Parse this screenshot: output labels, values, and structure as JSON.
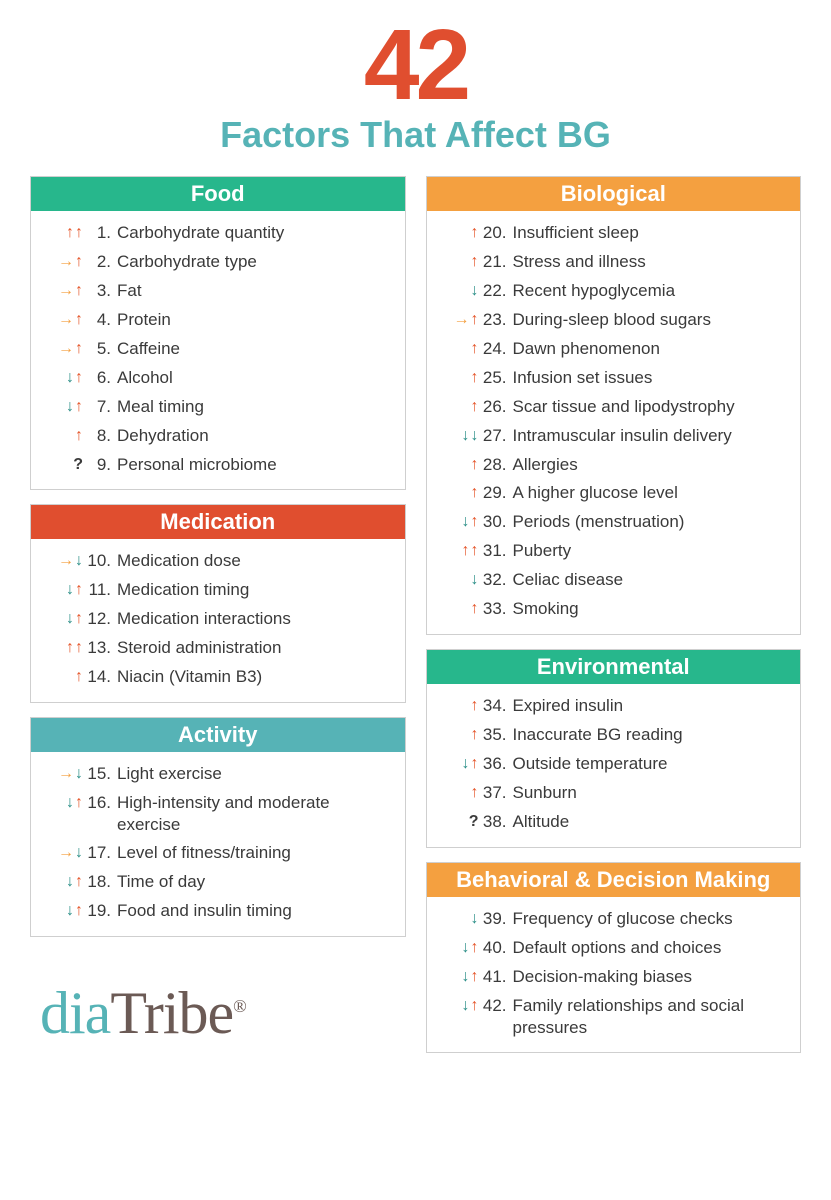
{
  "colors": {
    "orange_header": "#f4a040",
    "green_header": "#27b78c",
    "teal_header": "#56b3b6",
    "red_header": "#e04e2f",
    "big_number": "#e04e2f",
    "subtitle": "#56b3b6",
    "arrow_up": "#e5572c",
    "arrow_down": "#2a8e87",
    "arrow_right": "#f4a040",
    "question": "#3a3a3a",
    "text": "#3a3a3a"
  },
  "header": {
    "number": "42",
    "subtitle": "Factors That Affect BG"
  },
  "logo": {
    "part1": "dia",
    "part2": "Tribe",
    "reg": "®"
  },
  "left": [
    {
      "title": "Food",
      "header_color": "green_header",
      "items": [
        {
          "n": 1,
          "label": "Carbohydrate quantity",
          "arrows": [
            "up",
            "up"
          ]
        },
        {
          "n": 2,
          "label": "Carbohydrate type",
          "arrows": [
            "right",
            "up"
          ]
        },
        {
          "n": 3,
          "label": "Fat",
          "arrows": [
            "right",
            "up"
          ]
        },
        {
          "n": 4,
          "label": "Protein",
          "arrows": [
            "right",
            "up"
          ]
        },
        {
          "n": 5,
          "label": "Caffeine",
          "arrows": [
            "right",
            "up"
          ]
        },
        {
          "n": 6,
          "label": "Alcohol",
          "arrows": [
            "down",
            "up"
          ]
        },
        {
          "n": 7,
          "label": "Meal timing",
          "arrows": [
            "down",
            "up"
          ]
        },
        {
          "n": 8,
          "label": "Dehydration",
          "arrows": [
            "up"
          ]
        },
        {
          "n": 9,
          "label": "Personal microbiome",
          "arrows": [
            "question"
          ]
        }
      ]
    },
    {
      "title": "Medication",
      "header_color": "red_header",
      "items": [
        {
          "n": 10,
          "label": "Medication dose",
          "arrows": [
            "right",
            "down"
          ]
        },
        {
          "n": 11,
          "label": "Medication timing",
          "arrows": [
            "down",
            "up"
          ]
        },
        {
          "n": 12,
          "label": "Medication interactions",
          "arrows": [
            "down",
            "up"
          ]
        },
        {
          "n": 13,
          "label": "Steroid administration",
          "arrows": [
            "up",
            "up"
          ]
        },
        {
          "n": 14,
          "label": "Niacin (Vitamin B3)",
          "arrows": [
            "up"
          ]
        }
      ]
    },
    {
      "title": "Activity",
      "header_color": "teal_header",
      "items": [
        {
          "n": 15,
          "label": "Light exercise",
          "arrows": [
            "right",
            "down"
          ]
        },
        {
          "n": 16,
          "label": "High-intensity and moderate exercise",
          "arrows": [
            "down",
            "up"
          ]
        },
        {
          "n": 17,
          "label": "Level of fitness/training",
          "arrows": [
            "right",
            "down"
          ]
        },
        {
          "n": 18,
          "label": "Time of day",
          "arrows": [
            "down",
            "up"
          ]
        },
        {
          "n": 19,
          "label": "Food and insulin timing",
          "arrows": [
            "down",
            "up"
          ]
        }
      ]
    }
  ],
  "right": [
    {
      "title": "Biological",
      "header_color": "orange_header",
      "items": [
        {
          "n": 20,
          "label": "Insufficient sleep",
          "arrows": [
            "up"
          ]
        },
        {
          "n": 21,
          "label": "Stress and illness",
          "arrows": [
            "up"
          ]
        },
        {
          "n": 22,
          "label": "Recent hypoglycemia",
          "arrows": [
            "down"
          ]
        },
        {
          "n": 23,
          "label": "During-sleep blood sugars",
          "arrows": [
            "right",
            "up"
          ]
        },
        {
          "n": 24,
          "label": "Dawn phenomenon",
          "arrows": [
            "up"
          ]
        },
        {
          "n": 25,
          "label": "Infusion set issues",
          "arrows": [
            "up"
          ]
        },
        {
          "n": 26,
          "label": "Scar tissue and lipodystrophy",
          "arrows": [
            "up"
          ]
        },
        {
          "n": 27,
          "label": "Intramuscular insulin delivery",
          "arrows": [
            "down",
            "down"
          ]
        },
        {
          "n": 28,
          "label": "Allergies",
          "arrows": [
            "up"
          ]
        },
        {
          "n": 29,
          "label": "A higher glucose level",
          "arrows": [
            "up"
          ]
        },
        {
          "n": 30,
          "label": "Periods (menstruation)",
          "arrows": [
            "down",
            "up"
          ]
        },
        {
          "n": 31,
          "label": "Puberty",
          "arrows": [
            "up",
            "up"
          ]
        },
        {
          "n": 32,
          "label": "Celiac disease",
          "arrows": [
            "down"
          ]
        },
        {
          "n": 33,
          "label": "Smoking",
          "arrows": [
            "up"
          ]
        }
      ]
    },
    {
      "title": "Environmental",
      "header_color": "green_header",
      "items": [
        {
          "n": 34,
          "label": "Expired insulin",
          "arrows": [
            "up"
          ]
        },
        {
          "n": 35,
          "label": "Inaccurate BG reading",
          "arrows": [
            "up"
          ]
        },
        {
          "n": 36,
          "label": "Outside temperature",
          "arrows": [
            "down",
            "up"
          ]
        },
        {
          "n": 37,
          "label": "Sunburn",
          "arrows": [
            "up"
          ]
        },
        {
          "n": 38,
          "label": "Altitude",
          "arrows": [
            "question"
          ]
        }
      ]
    },
    {
      "title": "Behavioral & Decision Making",
      "header_color": "orange_header",
      "items": [
        {
          "n": 39,
          "label": "Frequency of glucose checks",
          "arrows": [
            "down"
          ]
        },
        {
          "n": 40,
          "label": "Default options and choices",
          "arrows": [
            "down",
            "up"
          ]
        },
        {
          "n": 41,
          "label": "Decision-making biases",
          "arrows": [
            "down",
            "up"
          ]
        },
        {
          "n": 42,
          "label": "Family relationships and social pressures",
          "arrows": [
            "down",
            "up"
          ]
        }
      ]
    }
  ]
}
